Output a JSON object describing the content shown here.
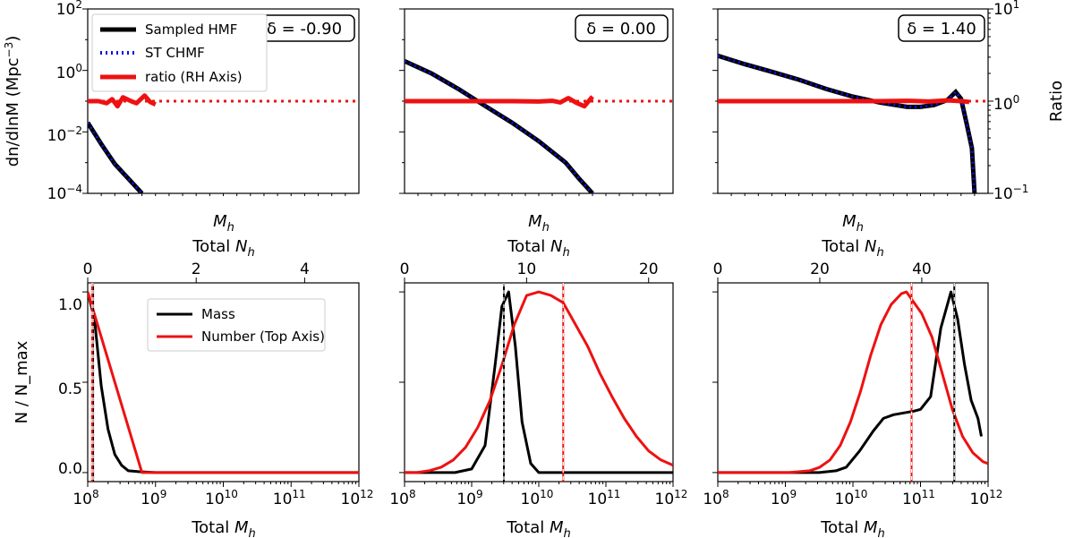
{
  "colors": {
    "black": "#000000",
    "red": "#ee1111",
    "blue": "#1010e0"
  },
  "chart_data": [
    {
      "panel": "top-left",
      "type": "line",
      "scale": "log",
      "annotation": "δ = -0.90",
      "ylabel": "dn/dlnM (Mpc$^{-3}$)",
      "ylabel_text": "dn/dlnM (Mpc",
      "ylabel_sup": "−3",
      "ylabel_close": ")",
      "xlabel": "M_h",
      "top_xlabel": "Total N_h",
      "ylim": [
        0.0001,
        100
      ],
      "ylim_right": [
        0.1,
        10
      ],
      "yticks": [
        {
          "base": "10",
          "exp": "−4",
          "value": 0.0001
        },
        {
          "base": "10",
          "exp": "−2",
          "value": 0.01
        },
        {
          "base": "10",
          "exp": "0",
          "value": 1
        },
        {
          "base": "10",
          "exp": "2",
          "value": 100
        }
      ],
      "legend": [
        "Sampled HMF",
        "ST CHMF",
        "ratio (RH Axis)"
      ],
      "series": [
        {
          "name": "Sampled HMF",
          "x": [
            0,
            0.05,
            0.1,
            0.15,
            0.2
          ],
          "y": [
            0.02,
            0.004,
            0.0009,
            0.0003,
            0.0001
          ]
        },
        {
          "name": "ST CHMF",
          "x": [
            0,
            0.05,
            0.1,
            0.15,
            0.2
          ],
          "y": [
            0.02,
            0.004,
            0.0009,
            0.0003,
            0.0001
          ]
        },
        {
          "name": "ratio (RH Axis)",
          "axis": "right",
          "x": [
            0,
            0.04,
            0.07,
            0.09,
            0.11,
            0.13,
            0.16,
            0.18,
            0.21,
            0.23,
            0.25
          ],
          "y": [
            1.0,
            1.0,
            0.95,
            1.05,
            0.88,
            1.1,
            1.0,
            0.95,
            1.15,
            0.98,
            0.92
          ]
        }
      ],
      "reference_line": {
        "axis": "right",
        "y": 1.0
      }
    },
    {
      "panel": "top-middle",
      "type": "line",
      "scale": "log",
      "annotation": "δ = 0.00",
      "xlabel": "M_h",
      "top_xlabel": "Total N_h",
      "ylim": [
        0.0001,
        100
      ],
      "series": [
        {
          "name": "Sampled HMF",
          "x": [
            0,
            0.1,
            0.2,
            0.3,
            0.4,
            0.5,
            0.6,
            0.65,
            0.7
          ],
          "y": [
            2.0,
            0.8,
            0.25,
            0.07,
            0.02,
            0.005,
            0.001,
            0.0003,
            0.0001
          ]
        },
        {
          "name": "ST CHMF",
          "x": [
            0,
            0.1,
            0.2,
            0.3,
            0.4,
            0.5,
            0.6,
            0.65,
            0.7
          ],
          "y": [
            2.0,
            0.8,
            0.25,
            0.07,
            0.02,
            0.005,
            0.001,
            0.0003,
            0.0001
          ]
        },
        {
          "name": "ratio (RH Axis)",
          "axis": "right",
          "x": [
            0,
            0.2,
            0.4,
            0.5,
            0.55,
            0.58,
            0.61,
            0.64,
            0.67,
            0.7
          ],
          "y": [
            1.0,
            1.0,
            1.0,
            0.99,
            1.01,
            0.97,
            1.08,
            0.96,
            0.88,
            1.12
          ]
        }
      ],
      "reference_line": {
        "axis": "right",
        "y": 1.0
      }
    },
    {
      "panel": "top-right",
      "type": "line",
      "scale": "log",
      "annotation": "δ = 1.40",
      "xlabel": "M_h",
      "top_xlabel": "Total N_h",
      "ylabel_right": "Ratio",
      "ylim": [
        0.0001,
        100
      ],
      "ylim_right": [
        0.1,
        10
      ],
      "yticks_right": [
        {
          "base": "10",
          "exp": "−1",
          "value": 0.1
        },
        {
          "base": "10",
          "exp": "0",
          "value": 1
        },
        {
          "base": "10",
          "exp": "1",
          "value": 10
        }
      ],
      "series": [
        {
          "name": "Sampled HMF",
          "x": [
            0,
            0.1,
            0.2,
            0.3,
            0.4,
            0.5,
            0.6,
            0.7,
            0.75,
            0.8,
            0.85,
            0.88,
            0.9,
            0.92,
            0.94,
            0.95
          ],
          "y": [
            3.0,
            1.6,
            0.9,
            0.5,
            0.25,
            0.14,
            0.09,
            0.065,
            0.065,
            0.075,
            0.11,
            0.2,
            0.12,
            0.02,
            0.003,
            0.0001
          ]
        },
        {
          "name": "ST CHMF",
          "x": [
            0,
            0.1,
            0.2,
            0.3,
            0.4,
            0.5,
            0.6,
            0.7,
            0.75,
            0.8,
            0.85,
            0.88,
            0.9,
            0.92,
            0.94,
            0.95
          ],
          "y": [
            3.0,
            1.6,
            0.9,
            0.5,
            0.25,
            0.14,
            0.09,
            0.065,
            0.065,
            0.075,
            0.11,
            0.2,
            0.12,
            0.02,
            0.003,
            0.0001
          ]
        },
        {
          "name": "ratio (RH Axis)",
          "axis": "right",
          "x": [
            0,
            0.3,
            0.6,
            0.7,
            0.78,
            0.85,
            0.9,
            0.93
          ],
          "y": [
            1.0,
            1.0,
            1.0,
            1.01,
            0.99,
            1.02,
            1.0,
            0.98
          ]
        }
      ],
      "reference_line": {
        "axis": "right",
        "y": 1.0
      }
    },
    {
      "panel": "bottom-left",
      "type": "line",
      "ylabel": "N / N_max",
      "xlabel": "Total M_h",
      "top_xlabel": "Total N_h",
      "xlim_log10": [
        8,
        12
      ],
      "ylim": [
        -0.05,
        1.05
      ],
      "xticks": [
        {
          "base": "10",
          "exp": "8",
          "value": 8
        },
        {
          "base": "10",
          "exp": "9",
          "value": 9
        },
        {
          "base": "10",
          "exp": "10",
          "value": 10
        },
        {
          "base": "10",
          "exp": "11",
          "value": 11
        },
        {
          "base": "10",
          "exp": "12",
          "value": 12
        }
      ],
      "yticks": [
        {
          "label": "0.0",
          "value": 0
        },
        {
          "label": "0.5",
          "value": 0.5
        },
        {
          "label": "1.0",
          "value": 1.0
        }
      ],
      "top_xlim": [
        0,
        5
      ],
      "top_xticks": [
        {
          "label": "0",
          "value": 0
        },
        {
          "label": "2",
          "value": 2
        },
        {
          "label": "4",
          "value": 4
        }
      ],
      "legend": [
        "Mass",
        "Number (Top Axis)"
      ],
      "series": [
        {
          "name": "Mass",
          "axis": "bottom",
          "x_log10": [
            8.0,
            8.1,
            8.2,
            8.3,
            8.4,
            8.5,
            8.6,
            8.75,
            9.0,
            10.0,
            11.0,
            12.0
          ],
          "y": [
            1.0,
            0.85,
            0.48,
            0.24,
            0.1,
            0.04,
            0.01,
            0.005,
            0.0,
            0.0,
            0.0,
            0.0
          ]
        },
        {
          "name": "Number (Top Axis)",
          "axis": "top",
          "x": [
            0,
            1.0,
            5.0
          ],
          "y": [
            1.0,
            0.0,
            0.0
          ]
        }
      ],
      "vlines": [
        {
          "axis": "bottom",
          "x_log10": 8.08,
          "color": "black"
        },
        {
          "axis": "top",
          "x": 0.08,
          "color": "red"
        }
      ]
    },
    {
      "panel": "bottom-middle",
      "type": "line",
      "xlabel": "Total M_h",
      "top_xlabel": "Total N_h",
      "xlim_log10": [
        8,
        12
      ],
      "ylim": [
        -0.05,
        1.05
      ],
      "xticks": [
        {
          "base": "10",
          "exp": "8",
          "value": 8
        },
        {
          "base": "10",
          "exp": "9",
          "value": 9
        },
        {
          "base": "10",
          "exp": "10",
          "value": 10
        },
        {
          "base": "10",
          "exp": "11",
          "value": 11
        },
        {
          "base": "10",
          "exp": "12",
          "value": 12
        }
      ],
      "top_xlim": [
        0,
        22
      ],
      "top_xticks": [
        {
          "label": "0",
          "value": 0
        },
        {
          "label": "10",
          "value": 10
        },
        {
          "label": "20",
          "value": 20
        }
      ],
      "series": [
        {
          "name": "Mass",
          "axis": "bottom",
          "x_log10": [
            8.0,
            8.75,
            9.0,
            9.2,
            9.35,
            9.45,
            9.55,
            9.65,
            9.75,
            9.88,
            10.0,
            10.5,
            12.0
          ],
          "y": [
            0.0,
            0.0,
            0.02,
            0.15,
            0.6,
            0.92,
            1.0,
            0.7,
            0.28,
            0.05,
            0.0,
            0.0,
            0.0
          ]
        },
        {
          "name": "Number (Top Axis)",
          "axis": "top",
          "x": [
            0,
            1,
            2,
            3,
            4,
            5,
            6,
            7,
            8,
            9,
            10,
            11,
            12,
            13,
            14,
            15,
            16,
            17,
            18,
            19,
            20,
            21,
            22
          ],
          "y": [
            0.0,
            0.0,
            0.01,
            0.03,
            0.07,
            0.14,
            0.25,
            0.4,
            0.6,
            0.82,
            0.98,
            1.0,
            0.98,
            0.94,
            0.82,
            0.7,
            0.55,
            0.42,
            0.3,
            0.2,
            0.12,
            0.07,
            0.04
          ]
        }
      ],
      "vlines": [
        {
          "axis": "bottom",
          "x_log10": 9.48,
          "color": "black"
        },
        {
          "axis": "top",
          "x": 13.0,
          "color": "red"
        }
      ]
    },
    {
      "panel": "bottom-right",
      "type": "line",
      "xlabel": "Total M_h",
      "top_xlabel": "Total N_h",
      "xlim_log10": [
        8,
        12
      ],
      "ylim": [
        -0.05,
        1.05
      ],
      "xticks": [
        {
          "base": "10",
          "exp": "8",
          "value": 8
        },
        {
          "base": "10",
          "exp": "9",
          "value": 9
        },
        {
          "base": "10",
          "exp": "10",
          "value": 10
        },
        {
          "base": "10",
          "exp": "11",
          "value": 11
        },
        {
          "base": "10",
          "exp": "12",
          "value": 12
        }
      ],
      "top_xlim": [
        0,
        53
      ],
      "top_xticks": [
        {
          "label": "0",
          "value": 0
        },
        {
          "label": "20",
          "value": 20
        },
        {
          "label": "40",
          "value": 40
        }
      ],
      "series": [
        {
          "name": "Mass",
          "axis": "bottom",
          "x_log10": [
            8.0,
            9.5,
            9.75,
            9.9,
            10.1,
            10.3,
            10.45,
            10.6,
            10.75,
            10.9,
            11.0,
            11.15,
            11.3,
            11.45,
            11.55,
            11.65,
            11.75,
            11.85,
            11.9
          ],
          "y": [
            0.0,
            0.0,
            0.01,
            0.03,
            0.12,
            0.23,
            0.3,
            0.32,
            0.33,
            0.34,
            0.35,
            0.42,
            0.8,
            1.0,
            0.85,
            0.6,
            0.4,
            0.3,
            0.2
          ]
        },
        {
          "name": "Number (Top Axis)",
          "axis": "top",
          "x": [
            0,
            14,
            18,
            20,
            22,
            24,
            26,
            28,
            30,
            32,
            34,
            36,
            37,
            38,
            40,
            42,
            44,
            46,
            48,
            50,
            52,
            53
          ],
          "y": [
            0.0,
            0.0,
            0.01,
            0.03,
            0.07,
            0.15,
            0.28,
            0.45,
            0.65,
            0.82,
            0.93,
            0.99,
            1.0,
            0.96,
            0.88,
            0.75,
            0.55,
            0.35,
            0.2,
            0.11,
            0.06,
            0.05
          ]
        }
      ],
      "vlines": [
        {
          "axis": "bottom",
          "x_log10": 11.5,
          "color": "black"
        },
        {
          "axis": "top",
          "x": 38.0,
          "color": "red"
        }
      ]
    }
  ]
}
